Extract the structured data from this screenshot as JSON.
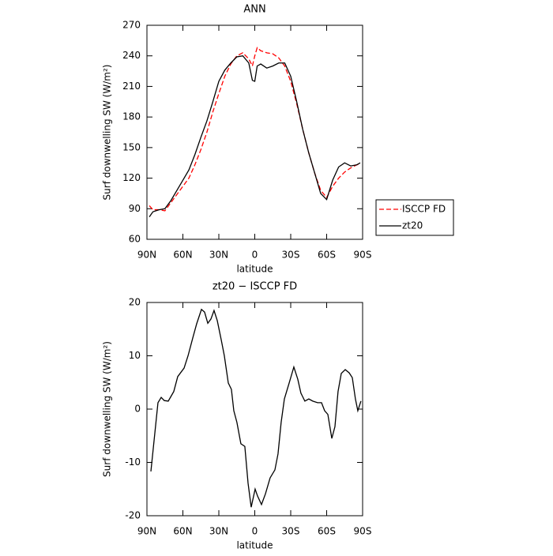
{
  "chart_data": [
    {
      "type": "line",
      "title": "ANN",
      "xlabel": "latitude",
      "ylabel": "Surf downwelling SW (W/m²)",
      "x": [
        88,
        85,
        80,
        75,
        70,
        65,
        60,
        55,
        50,
        45,
        40,
        35,
        30,
        25,
        20,
        15,
        10,
        5,
        2,
        0,
        -2,
        -5,
        -10,
        -15,
        -20,
        -25,
        -30,
        -35,
        -40,
        -45,
        -50,
        -55,
        -60,
        -65,
        -70,
        -75,
        -80,
        -85,
        -88
      ],
      "series": [
        {
          "name": "ISCCP FD",
          "color": "#ff0000",
          "dashed": true,
          "values": [
            93,
            89,
            89,
            88,
            96,
            104,
            112,
            120,
            133,
            148,
            165,
            185,
            203,
            220,
            232,
            240,
            243,
            237,
            230,
            240,
            248,
            245,
            243,
            242,
            238,
            230,
            215,
            193,
            168,
            145,
            125,
            108,
            101,
            112,
            120,
            126,
            130,
            133,
            134
          ]
        },
        {
          "name": "zt20",
          "color": "#000000",
          "dashed": false,
          "values": [
            82,
            87,
            89,
            90,
            98,
            108,
            118,
            128,
            143,
            160,
            176,
            195,
            215,
            226,
            233,
            239,
            240,
            233,
            216,
            215,
            230,
            232,
            228,
            230,
            233,
            233,
            220,
            195,
            168,
            145,
            125,
            105,
            99,
            118,
            131,
            135,
            132,
            133,
            135
          ]
        }
      ],
      "xlim": [
        90,
        -90
      ],
      "xticks": [
        {
          "value": 90,
          "label": "90N"
        },
        {
          "value": 60,
          "label": "60N"
        },
        {
          "value": 30,
          "label": "30N"
        },
        0,
        {
          "value": -30,
          "label": "30S"
        },
        {
          "value": -60,
          "label": "60S"
        },
        {
          "value": -90,
          "label": "90S"
        }
      ],
      "ylim": [
        60,
        270
      ],
      "yticks": [
        60,
        90,
        120,
        150,
        180,
        210,
        240,
        270
      ],
      "legend": "outside-right"
    },
    {
      "type": "line",
      "title": "zt20 − ISCCP FD",
      "xlabel": "latitude",
      "ylabel": "Surf downwelling SW (W/m²)",
      "x": [
        86.7,
        80.8,
        78.1,
        75.5,
        72.2,
        67.6,
        64.3,
        59,
        55.7,
        51.8,
        48.5,
        44.5,
        41.9,
        39.2,
        36.6,
        34,
        31.3,
        28,
        25.4,
        22.1,
        19.5,
        17.5,
        14.9,
        11.6,
        8.3,
        5.6,
        3,
        -0.3,
        -2.3,
        -5.6,
        -8.9,
        -12.8,
        -16.8,
        -19.4,
        -22,
        -24.7,
        -28.7,
        -32.6,
        -35.9,
        -38.5,
        -41.8,
        -45.1,
        -48.4,
        -52.4,
        -55.7,
        -58.3,
        -61,
        -64.3,
        -66.9,
        -69.5,
        -72.2,
        -75.5,
        -78.8,
        -81.4,
        -84,
        -86,
        -88.6
      ],
      "series": [
        {
          "color": "#000000",
          "dashed": false,
          "values": [
            -11.7,
            1.2,
            2.2,
            1.6,
            1.5,
            3.3,
            6.1,
            7.7,
            10,
            13.3,
            16,
            18.7,
            18.2,
            16.1,
            16.9,
            18.5,
            16.6,
            13,
            10,
            4.9,
            3.7,
            -0.3,
            -2.5,
            -6.5,
            -7,
            -13.9,
            -18.4,
            -15,
            -16.3,
            -17.9,
            -15.9,
            -12.9,
            -11.4,
            -8.4,
            -2.5,
            1.9,
            4.9,
            7.9,
            5.6,
            3,
            1.5,
            1.9,
            1.5,
            1.2,
            1.2,
            -0.3,
            -1,
            -5.5,
            -3.3,
            3.3,
            6.7,
            7.4,
            6.8,
            5.9,
            1.9,
            -0.3,
            1.5
          ]
        }
      ],
      "xlim": [
        90,
        -90
      ],
      "xticks": [
        {
          "value": 90,
          "label": "90N"
        },
        {
          "value": 60,
          "label": "60N"
        },
        {
          "value": 30,
          "label": "30N"
        },
        0,
        {
          "value": -30,
          "label": "30S"
        },
        {
          "value": -60,
          "label": "60S"
        },
        {
          "value": -90,
          "label": "90S"
        }
      ],
      "ylim": [
        -20,
        20
      ],
      "yticks": [
        -20,
        -10,
        0,
        10,
        20
      ]
    }
  ]
}
